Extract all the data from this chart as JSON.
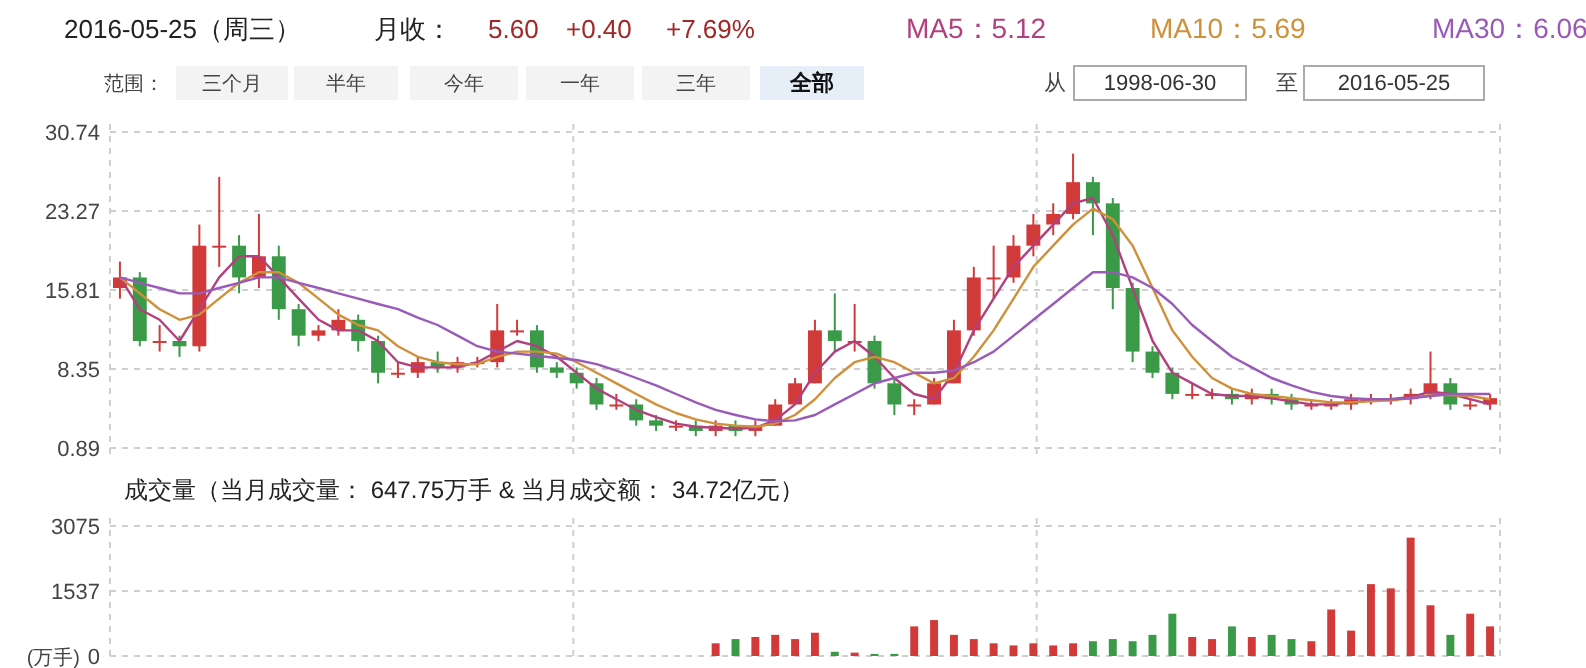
{
  "chart_data": [
    {
      "type": "candlestick",
      "categories": [
        null,
        null,
        null,
        null,
        null,
        null,
        null,
        null,
        null,
        null,
        null,
        null,
        null,
        null,
        null,
        null,
        null,
        null,
        null,
        null,
        null,
        null,
        null,
        null,
        null,
        null,
        null,
        null,
        null,
        null,
        null,
        null,
        null,
        null,
        null,
        null,
        null,
        null,
        null,
        null,
        null,
        null,
        null,
        null,
        null,
        null,
        null,
        null,
        null,
        null,
        null,
        null,
        null,
        null,
        null,
        null,
        null,
        null,
        null,
        null,
        null,
        null,
        null,
        null,
        null,
        null,
        null,
        null,
        null,
        null
      ],
      "ohlc": [
        [
          16,
          18.5,
          15,
          17
        ],
        [
          17,
          17.5,
          10.5,
          11
        ],
        [
          11,
          12.5,
          10,
          11
        ],
        [
          11,
          11.5,
          9.5,
          10.5
        ],
        [
          10.5,
          22,
          10,
          20
        ],
        [
          20,
          26.5,
          18,
          20
        ],
        [
          20,
          21,
          15.5,
          17
        ],
        [
          17,
          23,
          16,
          19
        ],
        [
          19,
          20,
          13,
          14
        ],
        [
          14,
          14.5,
          10.5,
          11.5
        ],
        [
          11.5,
          12.5,
          11,
          12
        ],
        [
          12,
          14,
          11.5,
          13
        ],
        [
          13,
          13.5,
          10,
          11
        ],
        [
          11,
          11.5,
          7,
          8
        ],
        [
          8,
          9,
          7.5,
          8
        ],
        [
          8,
          9.5,
          7.5,
          9
        ],
        [
          9,
          10,
          8,
          8.5
        ],
        [
          8.5,
          9.5,
          8,
          9
        ],
        [
          9,
          9.5,
          8.5,
          9
        ],
        [
          9,
          14.5,
          8.5,
          12
        ],
        [
          12,
          13,
          11.5,
          12
        ],
        [
          12,
          12.5,
          8,
          8.5
        ],
        [
          8.5,
          9,
          7.5,
          8
        ],
        [
          8,
          8.5,
          6.5,
          7
        ],
        [
          7,
          7.5,
          4.5,
          5
        ],
        [
          5,
          6,
          4.5,
          5
        ],
        [
          5,
          5.5,
          3,
          3.5
        ],
        [
          3.5,
          4,
          2.5,
          3
        ],
        [
          3,
          3.5,
          2.5,
          3
        ],
        [
          3,
          3.5,
          2,
          2.5
        ],
        [
          2.5,
          3.5,
          2,
          3
        ],
        [
          3,
          3.5,
          2,
          2.5
        ],
        [
          2.5,
          3.5,
          2,
          3
        ],
        [
          3,
          5.5,
          3,
          5
        ],
        [
          5,
          7.5,
          5,
          7
        ],
        [
          7,
          13,
          7,
          12
        ],
        [
          12,
          15.5,
          10,
          11
        ],
        [
          11,
          14.5,
          10,
          11
        ],
        [
          11,
          11.5,
          6.5,
          7
        ],
        [
          7,
          7.5,
          4,
          5
        ],
        [
          5,
          5.5,
          4,
          5
        ],
        [
          5,
          7.5,
          5,
          7
        ],
        [
          7,
          13,
          7,
          12
        ],
        [
          12,
          18,
          11.5,
          17
        ],
        [
          17,
          20,
          15,
          17
        ],
        [
          17,
          21,
          16.5,
          20
        ],
        [
          20,
          23,
          19,
          22
        ],
        [
          22,
          24,
          21,
          23
        ],
        [
          23,
          28.7,
          22.5,
          26
        ],
        [
          26,
          26.5,
          21,
          24
        ],
        [
          24,
          24.5,
          14,
          16
        ],
        [
          16,
          16.5,
          9,
          10
        ],
        [
          10,
          10.5,
          7.5,
          8
        ],
        [
          8,
          8.5,
          5.5,
          6
        ],
        [
          6,
          7,
          5.5,
          6
        ],
        [
          6,
          6.5,
          5.5,
          6
        ],
        [
          6,
          6.5,
          5,
          5.5
        ],
        [
          5.5,
          6.5,
          5,
          6
        ],
        [
          6,
          6.5,
          5,
          5.5
        ],
        [
          5.5,
          6,
          4.5,
          5
        ],
        [
          5,
          5.5,
          4.5,
          5
        ],
        [
          5,
          5.5,
          4.5,
          5
        ],
        [
          5,
          6,
          4.5,
          5.5
        ],
        [
          5.5,
          6,
          5,
          5.5
        ],
        [
          5.5,
          6,
          5,
          5.5
        ],
        [
          5.5,
          6.5,
          5,
          6
        ],
        [
          6,
          10,
          5.5,
          7
        ],
        [
          7,
          7.5,
          4.5,
          5
        ],
        [
          5,
          5.5,
          4.5,
          5
        ],
        [
          5,
          6,
          4.5,
          5.6
        ]
      ],
      "series": [
        {
          "name": "MA5：5.12",
          "type": "line",
          "color": "#b2407e",
          "values": [
            17,
            14,
            13,
            11,
            14,
            17,
            19,
            19,
            17,
            15,
            13,
            12,
            12,
            11,
            9,
            8.5,
            8.5,
            8.5,
            9,
            10,
            11,
            10.5,
            9.5,
            8,
            6.5,
            5.5,
            4.5,
            3.8,
            3.2,
            2.9,
            2.8,
            2.7,
            2.8,
            3.5,
            5,
            8,
            10,
            11,
            9.5,
            7.5,
            6,
            5.5,
            8,
            12,
            15,
            18,
            20,
            22,
            24,
            24.5,
            21,
            16,
            11,
            8,
            7,
            6,
            5.8,
            5.8,
            5.6,
            5.3,
            5,
            5,
            5.2,
            5.4,
            5.5,
            5.7,
            6.2,
            6,
            5.5,
            5
          ]
        },
        {
          "name": "MA10：5.69",
          "type": "line",
          "color": "#d0903a",
          "values": [
            17,
            15.5,
            14,
            13,
            13.5,
            15,
            16.5,
            17.5,
            17.5,
            16.5,
            15,
            13.5,
            12.5,
            12,
            10.5,
            9.5,
            9,
            8.8,
            8.8,
            9.5,
            10,
            10,
            9.8,
            9,
            8,
            7,
            6,
            5,
            4.2,
            3.6,
            3.2,
            3,
            2.9,
            3.2,
            4,
            5.5,
            7.5,
            9,
            9.5,
            9,
            8,
            7,
            7.5,
            9.5,
            12,
            15,
            18,
            20,
            22,
            23.5,
            22.5,
            20,
            16,
            12,
            9.5,
            7.5,
            6.5,
            6,
            5.8,
            5.6,
            5.4,
            5.2,
            5.2,
            5.3,
            5.4,
            5.6,
            5.9,
            5.9,
            5.8,
            5.5
          ]
        },
        {
          "name": "MA30：6.06",
          "type": "line",
          "color": "#9a5ab8",
          "values": [
            17,
            16.5,
            16,
            15.5,
            15.5,
            16,
            16.5,
            17,
            17,
            16.5,
            16,
            15.5,
            15,
            14.5,
            14,
            13.2,
            12.5,
            11.5,
            10.5,
            10,
            9.8,
            9.6,
            9.4,
            9.2,
            8.8,
            8.2,
            7.5,
            6.8,
            6,
            5.2,
            4.5,
            4,
            3.6,
            3.4,
            3.5,
            4,
            5,
            6,
            7,
            7.5,
            8,
            8,
            8.2,
            9,
            10,
            11.5,
            13,
            14.5,
            16,
            17.5,
            17.5,
            17,
            16,
            14.5,
            12.5,
            11,
            9.5,
            8.5,
            7.5,
            6.8,
            6.2,
            5.8,
            5.6,
            5.5,
            5.5,
            5.6,
            5.8,
            6,
            6,
            6
          ]
        }
      ],
      "ylim": [
        0.89,
        30.74
      ],
      "yticks": [
        30.74,
        23.27,
        15.81,
        8.35,
        0.89
      ],
      "grid": true,
      "legend": "top right",
      "annotations": [
        "2016-05-25（周三）",
        "月收：",
        "5.60",
        "+0.40",
        "+7.69%",
        "范围：",
        "三个月",
        "半年",
        "今年",
        "一年",
        "三年",
        "全部",
        "从",
        "1998-06-30",
        "至",
        "2016-05-25"
      ]
    },
    {
      "type": "bar",
      "title": "成交量（当月成交量：      647.75万手    &    当月成交额：      34.72亿元）",
      "ylabel": "(万手)",
      "categories": [
        null,
        null,
        null,
        null,
        null,
        null,
        null,
        null,
        null,
        null,
        null,
        null,
        null,
        null,
        null,
        null,
        null,
        null,
        null,
        null,
        null,
        null,
        null,
        null,
        null,
        null,
        null,
        null,
        null,
        null,
        null,
        null,
        null,
        null,
        null,
        null,
        null,
        null,
        null,
        null,
        null,
        null,
        null,
        null,
        null,
        null,
        null,
        null,
        null,
        null,
        null,
        null,
        null,
        null,
        null,
        null,
        null,
        null,
        null,
        null,
        null,
        null,
        null,
        null,
        null,
        null,
        null,
        null,
        null,
        null
      ],
      "values": [
        0,
        0,
        0,
        0,
        0,
        0,
        0,
        0,
        0,
        0,
        0,
        0,
        0,
        0,
        0,
        0,
        0,
        0,
        0,
        0,
        0,
        0,
        0,
        0,
        0,
        0,
        0,
        0,
        0,
        0,
        300,
        400,
        450,
        500,
        400,
        550,
        100,
        80,
        50,
        50,
        700,
        850,
        500,
        400,
        300,
        250,
        300,
        250,
        300,
        350,
        400,
        350,
        500,
        1000,
        450,
        400,
        700,
        450,
        500,
        400,
        350,
        1100,
        600,
        1700,
        1600,
        2800,
        1200,
        500,
        1000,
        700
      ],
      "colors": [
        "#d23a3a",
        "#3a9a48",
        "#d23a3a",
        "#3a9a48",
        "#d23a3a",
        "#d23a3a",
        "#3a9a48",
        "#d23a3a",
        "#3a9a48",
        "#3a9a48",
        "#d23a3a",
        "#d23a3a",
        "#3a9a48",
        "#3a9a48",
        "#d23a3a",
        "#d23a3a",
        "#3a9a48",
        "#d23a3a",
        "#d23a3a",
        "#d23a3a",
        "#d23a3a",
        "#3a9a48",
        "#3a9a48",
        "#3a9a48",
        "#3a9a48",
        "#d23a3a",
        "#3a9a48",
        "#3a9a48",
        "#d23a3a",
        "#3a9a48",
        "#d23a3a",
        "#3a9a48",
        "#d23a3a",
        "#d23a3a",
        "#d23a3a",
        "#d23a3a",
        "#3a9a48",
        "#d23a3a",
        "#3a9a48",
        "#3a9a48",
        "#d23a3a",
        "#d23a3a",
        "#d23a3a",
        "#d23a3a",
        "#d23a3a",
        "#d23a3a",
        "#d23a3a",
        "#d23a3a",
        "#d23a3a",
        "#3a9a48",
        "#3a9a48",
        "#3a9a48",
        "#3a9a48",
        "#3a9a48",
        "#d23a3a",
        "#d23a3a",
        "#3a9a48",
        "#d23a3a",
        "#3a9a48",
        "#3a9a48",
        "#d23a3a",
        "#d23a3a",
        "#d23a3a",
        "#d23a3a",
        "#d23a3a",
        "#d23a3a",
        "#d23a3a",
        "#3a9a48",
        "#d23a3a",
        "#d23a3a"
      ],
      "ylim": [
        0,
        3075
      ],
      "yticks": [
        0,
        1537,
        3075
      ],
      "grid": true
    }
  ]
}
